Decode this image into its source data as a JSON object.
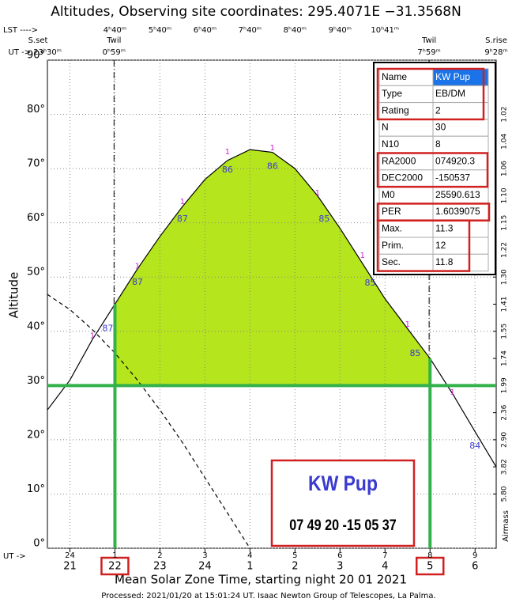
{
  "chart_data": {
    "type": "line",
    "title": "Altitudes, Observing site coordinates: 295.4071E −31.3568N",
    "y_label": "Altitude",
    "x_label": "Mean Solar Zone Time, starting night 20 01 2021",
    "footer": "Processed: 2021/01/20 at 15:01:24 UT. Isaac  Newton Group of Telescopes, La Palma.",
    "xlim": [
      20.5,
      30.47
    ],
    "ylim": [
      0,
      90
    ],
    "xticks": [
      21,
      22,
      23,
      24,
      {
        "value": 25,
        "label": "1"
      },
      {
        "value": 26,
        "label": "2"
      },
      {
        "value": 27,
        "label": "3"
      },
      {
        "value": 28,
        "label": "4"
      },
      {
        "value": 29,
        "label": "5"
      },
      {
        "value": 30,
        "label": "6"
      }
    ],
    "ut_axis_label": "UT ->",
    "ut_ticks": [
      {
        "value": 21,
        "label": "24"
      },
      {
        "value": 22,
        "label": "1"
      },
      {
        "value": 23,
        "label": "2"
      },
      {
        "value": 24,
        "label": "3"
      },
      {
        "value": 25,
        "label": "4"
      },
      {
        "value": 26,
        "label": "5"
      },
      {
        "value": 27,
        "label": "6"
      },
      {
        "value": 28,
        "label": "7"
      },
      {
        "value": 29,
        "label": "8"
      },
      {
        "value": 30,
        "label": "9"
      }
    ],
    "lst_axis_label": "LST ---->",
    "lst_ticks": [
      {
        "value": 22,
        "label": "4ʰ40ᵐ"
      },
      {
        "value": 23,
        "label": "5ʰ40ᵐ"
      },
      {
        "value": 24,
        "label": "6ʰ40ᵐ"
      },
      {
        "value": 25,
        "label": "7ʰ40ᵐ"
      },
      {
        "value": 26,
        "label": "8ʰ40ᵐ"
      },
      {
        "value": 27,
        "label": "9ʰ40ᵐ"
      },
      {
        "value": 28,
        "label": "10ʰ41ᵐ"
      }
    ],
    "yticks": [
      {
        "value": 0,
        "label": "0°"
      },
      {
        "value": 10,
        "label": "10°"
      },
      {
        "value": 20,
        "label": "20°"
      },
      {
        "value": 30,
        "label": "30°"
      },
      {
        "value": 40,
        "label": "40°"
      },
      {
        "value": 50,
        "label": "50°"
      },
      {
        "value": 60,
        "label": "60°"
      },
      {
        "value": 70,
        "label": "70°"
      },
      {
        "value": 80,
        "label": "80°"
      },
      {
        "value": 90,
        "label": "90°"
      }
    ],
    "airmass_label": "Airmass",
    "airmass_ticks": [
      {
        "value": 80,
        "label": "1.02"
      },
      {
        "value": 75,
        "label": "1.04"
      },
      {
        "value": 70,
        "label": "1.06"
      },
      {
        "value": 65,
        "label": "1.10"
      },
      {
        "value": 60,
        "label": "1.15"
      },
      {
        "value": 55,
        "label": "1.22"
      },
      {
        "value": 50,
        "label": "1.30"
      },
      {
        "value": 45,
        "label": "1.41"
      },
      {
        "value": 40,
        "label": "1.55"
      },
      {
        "value": 35,
        "label": "1.74"
      },
      {
        "value": 30,
        "label": "1.99"
      },
      {
        "value": 25,
        "label": "2.36"
      },
      {
        "value": 20,
        "label": "2.90"
      },
      {
        "value": 15,
        "label": "3.82"
      },
      {
        "value": 10,
        "label": "5.80"
      }
    ],
    "events": [
      {
        "name": "S.set",
        "time": "UT -> 23ʰ30ᵐ",
        "x": 20.5
      },
      {
        "name": "Twil",
        "time": "0ʰ59ᵐ",
        "x": 21.98
      },
      {
        "name": "Twil",
        "time": "7ʰ59ᵐ",
        "x": 28.98
      },
      {
        "name": "S.rise",
        "time": "9ʰ28ᵐ",
        "x": 30.47
      }
    ],
    "x": [
      20.5,
      21,
      21.5,
      22,
      22.5,
      23,
      23.5,
      24,
      24.5,
      25,
      25.5,
      26,
      26.5,
      27,
      27.5,
      28,
      28.5,
      29,
      29.5,
      30,
      30.47
    ],
    "series": [
      {
        "color": "#000000",
        "style": "solid",
        "values": [
          25.5,
          31,
          38.5,
          45,
          51.5,
          57.5,
          63,
          68,
          71.5,
          73.5,
          73,
          70,
          65,
          59,
          52.5,
          46,
          40.5,
          35,
          28.5,
          21.5,
          15
        ]
      },
      {
        "color": "#000000",
        "style": "dashed",
        "values": [
          46.8,
          44,
          40.3,
          36,
          31,
          25.5,
          19.5,
          13,
          6.5,
          0,
          null,
          null,
          null,
          null,
          null,
          null,
          null,
          null,
          null,
          null,
          null
        ]
      }
    ],
    "highlight": {
      "altitude": 30,
      "from": 22,
      "to": 29,
      "line_color": "#33b14b",
      "fill_color": "#b5e51d"
    },
    "moon_distance_labels": {
      "color": "#3a3ad0",
      "x": [
        21.84,
        22.5,
        23.5,
        24.5,
        25.5,
        26.65,
        27.67,
        28.67,
        30
      ],
      "y": [
        40.5,
        49,
        60.7,
        69.7,
        70.4,
        60.7,
        48.9,
        35.9,
        18.8
      ],
      "values": [
        87,
        87,
        87,
        86,
        86,
        85,
        85,
        85,
        84
      ]
    },
    "markers": {
      "color": "#d020d0",
      "x": [
        21.5,
        22.5,
        23.5,
        24.5,
        25.5,
        26.5,
        27.5,
        28.5,
        29.5
      ],
      "y": [
        39.2,
        52,
        63.9,
        73.1,
        73.8,
        65.5,
        54,
        41.3,
        28.7
      ],
      "values": [
        1,
        1,
        1,
        1,
        1,
        1,
        1,
        1,
        1
      ]
    },
    "info_table": {
      "rows": [
        [
          "Name",
          "KW Pup"
        ],
        [
          "Type",
          "EB/DM"
        ],
        [
          "Rating",
          "2"
        ],
        [
          "N",
          "30"
        ],
        [
          "N10",
          "8"
        ],
        [
          "RA2000",
          "074920.3"
        ],
        [
          "DEC2000",
          "-150537"
        ],
        [
          "M0",
          "25590.613"
        ],
        [
          "PER",
          "1.6039075"
        ],
        [
          "Max.",
          "11.3"
        ],
        [
          "Prim.",
          "12"
        ],
        [
          "Sec.",
          "11.8"
        ]
      ]
    },
    "target": {
      "name": "KW Pup",
      "coords": "07 49 20 -15 05 37"
    }
  }
}
